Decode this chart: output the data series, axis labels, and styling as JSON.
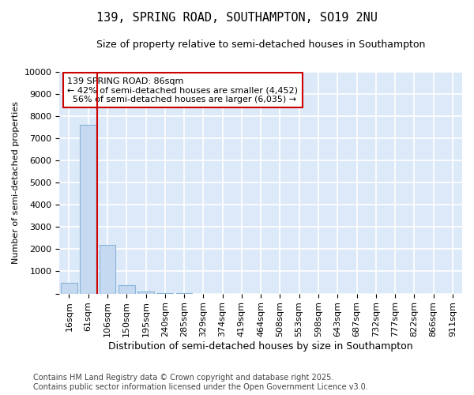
{
  "title": "139, SPRING ROAD, SOUTHAMPTON, SO19 2NU",
  "subtitle": "Size of property relative to semi-detached houses in Southampton",
  "xlabel": "Distribution of semi-detached houses by size in Southampton",
  "ylabel": "Number of semi-detached properties",
  "bar_color": "#c5d9f0",
  "bar_edge_color": "#8ab4d8",
  "background_color": "#dce9f8",
  "grid_color": "#ffffff",
  "categories": [
    "16sqm",
    "61sqm",
    "106sqm",
    "150sqm",
    "195sqm",
    "240sqm",
    "285sqm",
    "329sqm",
    "374sqm",
    "419sqm",
    "464sqm",
    "508sqm",
    "553sqm",
    "598sqm",
    "643sqm",
    "687sqm",
    "732sqm",
    "777sqm",
    "822sqm",
    "866sqm",
    "911sqm"
  ],
  "values": [
    500,
    7600,
    2200,
    380,
    100,
    30,
    10,
    3,
    1,
    1,
    0,
    0,
    0,
    0,
    0,
    0,
    0,
    0,
    0,
    0,
    0
  ],
  "property_label": "139 SPRING ROAD: 86sqm",
  "pct_smaller": 42,
  "pct_larger": 56,
  "count_smaller": 4452,
  "count_larger": 6035,
  "vline_color": "#cc0000",
  "annotation_box_color": "#cc0000",
  "ylim": [
    0,
    10000
  ],
  "yticks": [
    0,
    1000,
    2000,
    3000,
    4000,
    5000,
    6000,
    7000,
    8000,
    9000,
    10000
  ],
  "footer": "Contains HM Land Registry data © Crown copyright and database right 2025.\nContains public sector information licensed under the Open Government Licence v3.0.",
  "title_fontsize": 11,
  "subtitle_fontsize": 9,
  "footer_fontsize": 7,
  "xlabel_fontsize": 9,
  "ylabel_fontsize": 8,
  "tick_fontsize": 8,
  "annot_fontsize": 8
}
